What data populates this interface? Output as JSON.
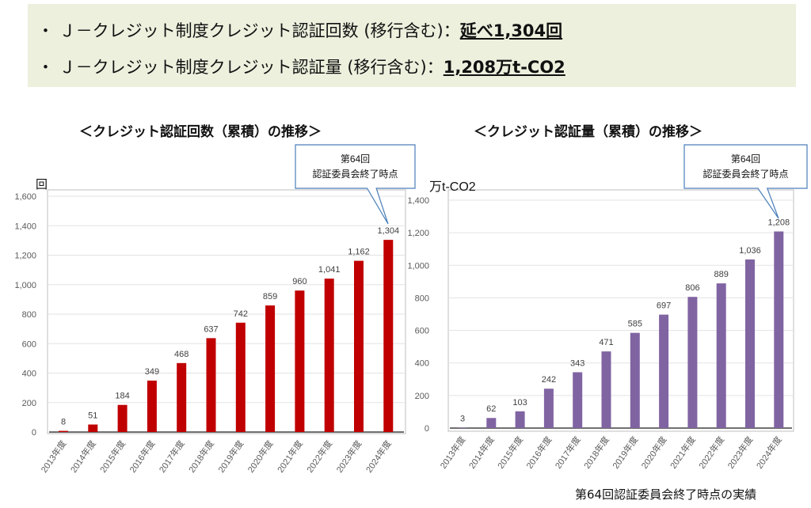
{
  "summary": {
    "line1_label": "・ Ｊ－クレジット制度クレジット認証回数 (移行含む)：",
    "line1_value": "延べ1,304回",
    "line2_label": "・ Ｊ－クレジット制度クレジット認証量 (移行含む)：",
    "line2_value": "1,208万t-CO2"
  },
  "footnote": "第64回認証委員会終了時点の実績",
  "chart_data": [
    {
      "type": "bar",
      "title": "＜クレジット認証回数（累積）の推移＞",
      "ylabel": "回",
      "ylim": [
        0,
        1600
      ],
      "yticks": [
        0,
        200,
        400,
        600,
        800,
        1000,
        1200,
        1400,
        1600
      ],
      "ytick_labels": [
        "0",
        "200",
        "400",
        "600",
        "800",
        "1,000",
        "1,200",
        "1,400",
        "1,600"
      ],
      "categories": [
        "2013年度",
        "2014年度",
        "2015年度",
        "2016年度",
        "2017年度",
        "2018年度",
        "2019年度",
        "2020年度",
        "2021年度",
        "2022年度",
        "2023年度",
        "2024年度"
      ],
      "values": [
        8,
        51,
        184,
        349,
        468,
        637,
        742,
        859,
        960,
        1041,
        1162,
        1304
      ],
      "data_labels": [
        "8",
        "51",
        "184",
        "349",
        "468",
        "637",
        "742",
        "859",
        "960",
        "1,041",
        "1,162",
        "1,304"
      ],
      "color": "#c00000",
      "grid": true,
      "annotation": {
        "line1": "第64回",
        "line2": "認証委員会終了時点"
      }
    },
    {
      "type": "bar",
      "title": "＜クレジット認証量（累積）の推移＞",
      "ylabel": "万t-CO2",
      "ylim": [
        0,
        1400
      ],
      "yticks": [
        0,
        200,
        400,
        600,
        800,
        1000,
        1200,
        1400
      ],
      "ytick_labels": [
        "0",
        "200",
        "400",
        "600",
        "800",
        "1,000",
        "1,200",
        "1,400"
      ],
      "categories": [
        "2013年度",
        "2014年度",
        "2015年度",
        "2016年度",
        "2017年度",
        "2018年度",
        "2019年度",
        "2020年度",
        "2021年度",
        "2022年度",
        "2023年度",
        "2024年度"
      ],
      "values": [
        3,
        62,
        103,
        242,
        343,
        471,
        585,
        697,
        806,
        889,
        1036,
        1208
      ],
      "data_labels": [
        "3",
        "62",
        "103",
        "242",
        "343",
        "471",
        "585",
        "697",
        "806",
        "889",
        "1,036",
        "1,208"
      ],
      "color": "#8064a2",
      "grid": true,
      "annotation": {
        "line1": "第64回",
        "line2": "認証委員会終了時点"
      }
    }
  ]
}
